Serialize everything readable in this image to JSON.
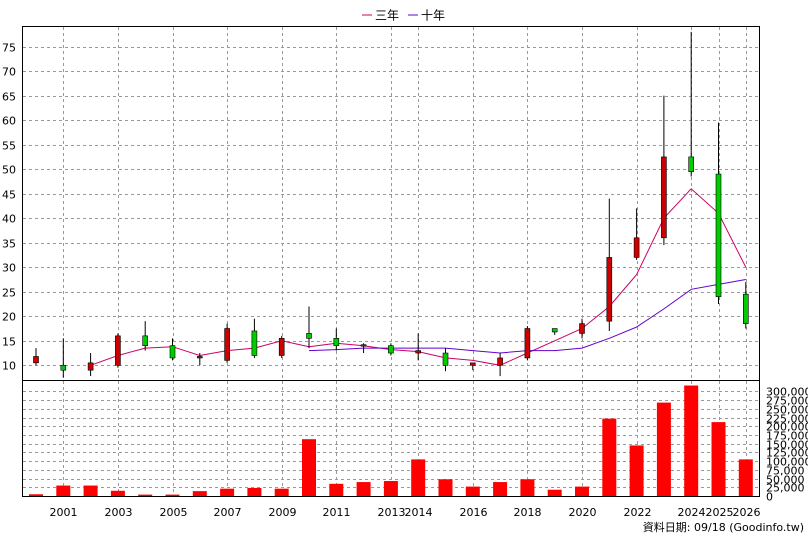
{
  "legend": {
    "items": [
      {
        "label": "三年",
        "color": "#cc0066"
      },
      {
        "label": "十年",
        "color": "#6600cc"
      }
    ]
  },
  "source_text": "資料日期: 09/18  (Goodinfo.tw)",
  "colors": {
    "up": "#cc0000",
    "down": "#00cc00",
    "volume": "#ff0000",
    "line3": "#cc0066",
    "line10": "#6600cc",
    "grid": "#999999"
  },
  "chart_data": [
    {
      "type": "candlestick",
      "title": "",
      "ylim": [
        7,
        79
      ],
      "yticks": [
        15,
        20,
        25,
        30,
        35,
        40,
        45,
        50,
        55,
        60,
        65,
        70,
        75,
        10
      ],
      "ytick_labels": [
        "15",
        "20",
        "25",
        "30",
        "35",
        "40",
        "45",
        "50",
        "55",
        "60",
        "65",
        "70",
        "75",
        "10"
      ],
      "grid": true,
      "years": [
        "2000",
        "2001",
        "2002",
        "2003",
        "2004",
        "2005",
        "2006",
        "2007",
        "2008",
        "2009",
        "2010",
        "2011",
        "2012",
        "2013",
        "2014",
        "2015",
        "2016",
        "2017",
        "2018",
        "2019",
        "2020",
        "2021",
        "2022",
        "2023",
        "2024",
        "2025",
        "2026"
      ],
      "xtick_labels": [
        {
          "year": "2001",
          "label": "2001"
        },
        {
          "year": "2003",
          "label": "2003"
        },
        {
          "year": "2005",
          "label": "2005"
        },
        {
          "year": "2007",
          "label": "2007"
        },
        {
          "year": "2009",
          "label": "2009"
        },
        {
          "year": "2011",
          "label": "2011"
        },
        {
          "year": "2013",
          "label": "2013"
        },
        {
          "year": "2014",
          "label": "2014"
        },
        {
          "year": "2016",
          "label": "2016"
        },
        {
          "year": "2018",
          "label": "2018"
        },
        {
          "year": "2020",
          "label": "2020"
        },
        {
          "year": "2022",
          "label": "2022"
        },
        {
          "year": "2024",
          "label": "2024"
        },
        {
          "year": "2025",
          "label": "2025"
        },
        {
          "year": "2026",
          "label": "2026"
        }
      ],
      "candles": [
        {
          "year": "2000",
          "open": 10.5,
          "high": 13.5,
          "low": 10.0,
          "close": 11.8
        },
        {
          "year": "2001",
          "open": 10.0,
          "high": 15.5,
          "low": 7.5,
          "close": 9.0
        },
        {
          "year": "2002",
          "open": 9.0,
          "high": 12.5,
          "low": 7.8,
          "close": 10.5
        },
        {
          "year": "2003",
          "open": 10.0,
          "high": 16.5,
          "low": 9.5,
          "close": 16.0
        },
        {
          "year": "2004",
          "open": 16.0,
          "high": 19.0,
          "low": 13.0,
          "close": 14.0
        },
        {
          "year": "2005",
          "open": 14.0,
          "high": 15.5,
          "low": 11.0,
          "close": 11.5
        },
        {
          "year": "2006",
          "open": 11.5,
          "high": 12.5,
          "low": 10.0,
          "close": 11.8
        },
        {
          "year": "2007",
          "open": 11.0,
          "high": 18.5,
          "low": 10.5,
          "close": 17.5
        },
        {
          "year": "2008",
          "open": 17.0,
          "high": 19.5,
          "low": 11.5,
          "close": 12.0
        },
        {
          "year": "2009",
          "open": 12.0,
          "high": 16.0,
          "low": 11.5,
          "close": 15.5
        },
        {
          "year": "2010",
          "open": 16.5,
          "high": 22.0,
          "low": 13.5,
          "close": 15.5
        },
        {
          "year": "2011",
          "open": 15.5,
          "high": 17.5,
          "low": 13.0,
          "close": 14.0
        },
        {
          "year": "2012",
          "open": 14.0,
          "high": 14.5,
          "low": 12.5,
          "close": 14.2
        },
        {
          "year": "2013",
          "open": 14.0,
          "high": 14.5,
          "low": 12.0,
          "close": 12.5
        },
        {
          "year": "2014",
          "open": 12.5,
          "high": 16.5,
          "low": 11.0,
          "close": 13.0
        },
        {
          "year": "2015",
          "open": 12.5,
          "high": 13.5,
          "low": 8.8,
          "close": 10.0
        },
        {
          "year": "2016",
          "open": 10.0,
          "high": 10.5,
          "low": 9.0,
          "close": 10.5
        },
        {
          "year": "2017",
          "open": 10.0,
          "high": 12.5,
          "low": 7.8,
          "close": 11.5
        },
        {
          "year": "2018",
          "open": 11.5,
          "high": 18.0,
          "low": 11.0,
          "close": 17.5
        },
        {
          "year": "2019",
          "open": 17.5,
          "high": 17.5,
          "low": 16.2,
          "close": 16.8
        },
        {
          "year": "2020",
          "open": 16.5,
          "high": 19.5,
          "low": 15.5,
          "close": 18.5
        },
        {
          "year": "2021",
          "open": 19.0,
          "high": 44.0,
          "low": 17.0,
          "close": 32.0
        },
        {
          "year": "2022",
          "open": 32.0,
          "high": 42.0,
          "low": 31.5,
          "close": 36.0
        },
        {
          "year": "2023",
          "open": 36.0,
          "high": 65.0,
          "low": 34.5,
          "close": 52.5
        },
        {
          "year": "2024",
          "open": 52.5,
          "high": 78.0,
          "low": 48.5,
          "close": 49.5
        },
        {
          "year": "2025",
          "open": 49.0,
          "high": 59.5,
          "low": 22.5,
          "close": 24.0
        },
        {
          "year": "2026",
          "open": 24.5,
          "high": 27.0,
          "low": 17.5,
          "close": 18.5
        }
      ],
      "series": [
        {
          "name": "三年",
          "color": "#cc0066",
          "values": [
            null,
            null,
            10.0,
            12.0,
            13.5,
            13.8,
            12.0,
            13.0,
            13.5,
            15.0,
            13.8,
            14.5,
            14.0,
            13.2,
            12.8,
            11.5,
            11.0,
            10.0,
            12.5,
            15.0,
            17.5,
            22.0,
            28.5,
            40.0,
            46.0,
            41.0,
            30.0
          ]
        },
        {
          "name": "十年",
          "color": "#6600cc",
          "values": [
            null,
            null,
            null,
            null,
            null,
            null,
            null,
            null,
            null,
            null,
            13.0,
            13.2,
            13.5,
            13.5,
            13.5,
            13.5,
            13.0,
            12.5,
            13.0,
            13.0,
            13.5,
            15.5,
            17.8,
            21.5,
            25.5,
            26.5,
            27.5
          ]
        }
      ]
    },
    {
      "type": "bar",
      "title": "",
      "ylim": [
        0,
        330000
      ],
      "yticks": [
        0,
        25000,
        50000,
        75000,
        100000,
        125000,
        150000,
        175000,
        200000,
        225000,
        250000,
        275000,
        300000
      ],
      "ytick_labels": [
        "0",
        "25,000",
        "50,000",
        "75,000",
        "100,000",
        "125,000",
        "150,000",
        "175,000",
        "200,000",
        "225,000",
        "250,000",
        "275,000",
        "300,000"
      ],
      "grid": true,
      "categories": [
        "2000",
        "2001",
        "2002",
        "2003",
        "2004",
        "2005",
        "2006",
        "2007",
        "2008",
        "2009",
        "2010",
        "2011",
        "2012",
        "2013",
        "2014",
        "2015",
        "2016",
        "2017",
        "2018",
        "2019",
        "2020",
        "2021",
        "2022",
        "2023",
        "2024",
        "2025",
        "2026"
      ],
      "values": [
        5000,
        30000,
        30000,
        15000,
        4000,
        4000,
        14000,
        21000,
        23000,
        21000,
        163000,
        35000,
        40000,
        43000,
        105000,
        48000,
        27000,
        40000,
        48000,
        18000,
        27000,
        222000,
        145000,
        268000,
        317000,
        212000,
        105000
      ]
    }
  ]
}
